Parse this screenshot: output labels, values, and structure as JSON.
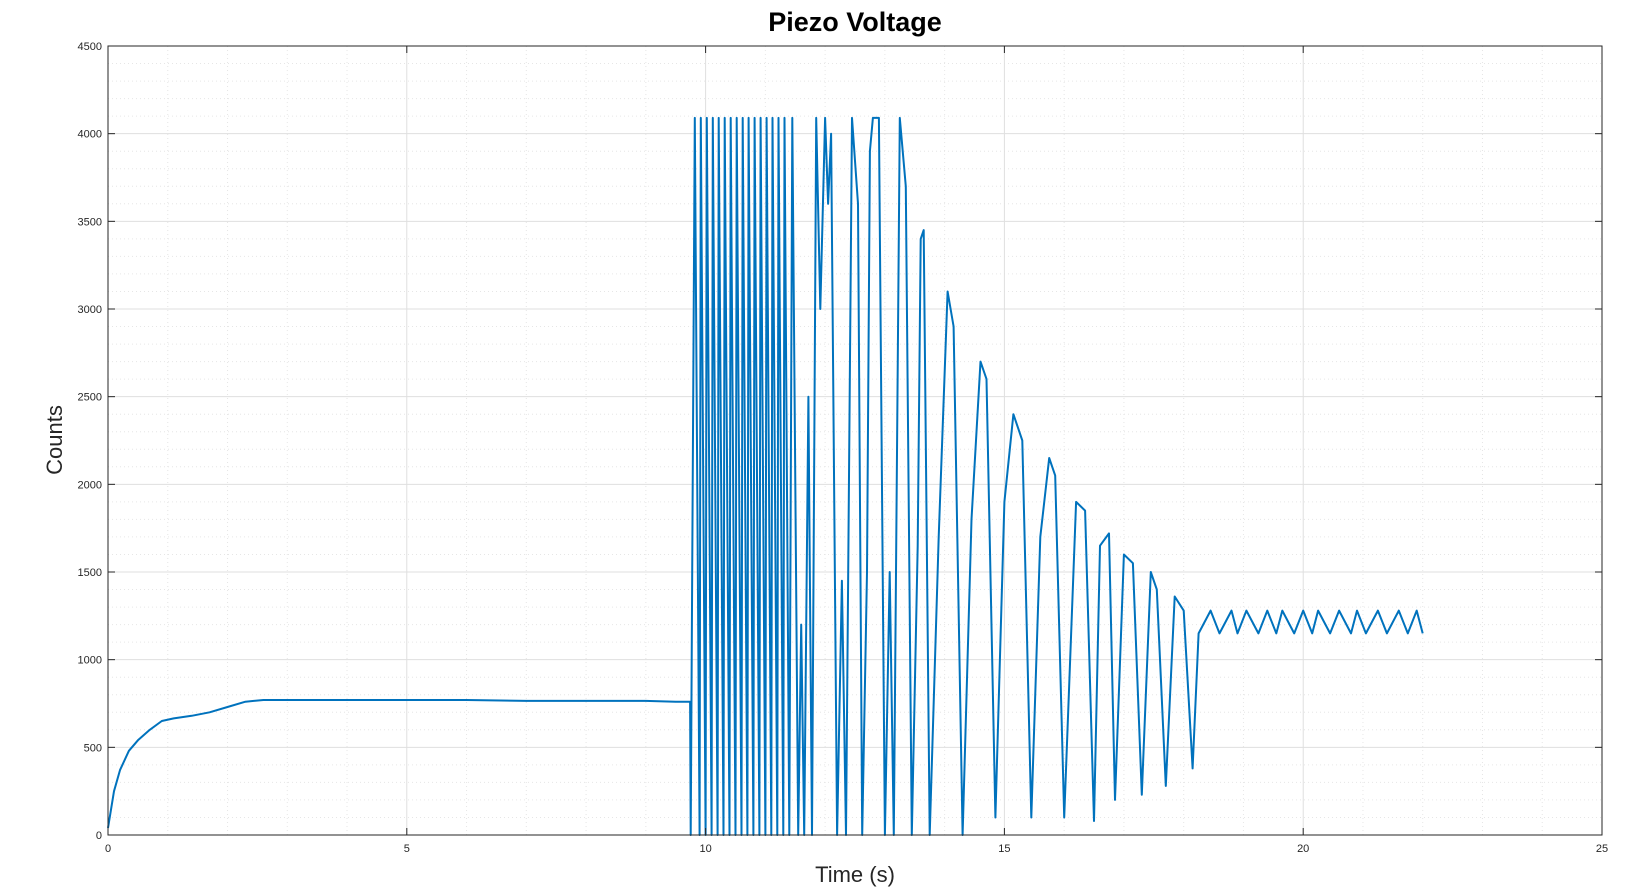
{
  "chart_data": {
    "type": "line",
    "title": "Piezo Voltage",
    "xlabel": "Time (s)",
    "ylabel": "Counts",
    "xlim": [
      0,
      25
    ],
    "ylim": [
      0,
      4500
    ],
    "x_ticks": [
      0,
      5,
      10,
      15,
      20,
      25
    ],
    "y_ticks": [
      0,
      500,
      1000,
      1500,
      2000,
      2500,
      3000,
      3500,
      4000,
      4500
    ],
    "grid": true,
    "minor_grid": true,
    "series": [
      {
        "color": "#0072bd",
        "x": [
          0,
          0.1,
          0.2,
          0.35,
          0.5,
          0.7,
          0.9,
          1.1,
          1.4,
          1.7,
          2.0,
          2.3,
          2.6,
          3.0,
          4.0,
          5.0,
          6.0,
          7.0,
          8.0,
          9.0,
          9.5,
          9.74,
          9.75,
          9.82,
          9.9,
          9.92,
          10.0,
          10.02,
          10.1,
          10.12,
          10.2,
          10.22,
          10.3,
          10.32,
          10.4,
          10.42,
          10.5,
          10.52,
          10.6,
          10.62,
          10.7,
          10.72,
          10.8,
          10.82,
          10.9,
          10.92,
          11.0,
          11.02,
          11.1,
          11.12,
          11.2,
          11.22,
          11.3,
          11.32,
          11.4,
          11.45,
          11.55,
          11.6,
          11.65,
          11.72,
          11.78,
          11.85,
          11.92,
          12.0,
          12.05,
          12.1,
          12.2,
          12.28,
          12.35,
          12.45,
          12.55,
          12.62,
          12.7,
          12.75,
          12.8,
          12.9,
          13.0,
          13.08,
          13.15,
          13.25,
          13.35,
          13.45,
          13.55,
          13.6,
          13.65,
          13.75,
          13.9,
          14.05,
          14.15,
          14.3,
          14.45,
          14.6,
          14.7,
          14.85,
          15.0,
          15.15,
          15.3,
          15.45,
          15.6,
          15.75,
          15.85,
          16.0,
          16.2,
          16.35,
          16.5,
          16.6,
          16.75,
          16.85,
          17.0,
          17.15,
          17.3,
          17.45,
          17.55,
          17.7,
          17.85,
          18.0,
          18.15,
          18.25,
          18.45,
          18.6,
          18.8,
          18.9,
          19.05,
          19.25,
          19.4,
          19.55,
          19.65,
          19.85,
          20.0,
          20.15,
          20.25,
          20.45,
          20.6,
          20.8,
          20.9,
          21.05,
          21.25,
          21.4,
          21.6,
          21.75,
          21.9,
          22.0
        ],
        "y": [
          40,
          250,
          370,
          480,
          540,
          600,
          650,
          665,
          680,
          700,
          730,
          760,
          770,
          770,
          770,
          770,
          770,
          765,
          765,
          765,
          760,
          760,
          0,
          4090,
          0,
          4090,
          0,
          4090,
          0,
          4090,
          0,
          4090,
          0,
          4090,
          0,
          4090,
          0,
          4090,
          0,
          4090,
          0,
          4090,
          0,
          4090,
          0,
          4090,
          0,
          4090,
          0,
          4090,
          0,
          4090,
          0,
          4090,
          0,
          4090,
          0,
          1200,
          0,
          2500,
          0,
          4090,
          3000,
          4090,
          3600,
          4000,
          0,
          1450,
          0,
          4090,
          3600,
          0,
          1500,
          3900,
          4090,
          4090,
          0,
          1500,
          0,
          4090,
          3700,
          0,
          1650,
          3400,
          3450,
          0,
          1700,
          3100,
          2900,
          0,
          1800,
          2700,
          2600,
          100,
          1900,
          2400,
          2250,
          100,
          1700,
          2150,
          2050,
          100,
          1900,
          1850,
          80,
          1650,
          1720,
          200,
          1600,
          1550,
          230,
          1500,
          1400,
          280,
          1360,
          1280,
          380,
          1150,
          1280,
          1150,
          1280,
          1150,
          1280,
          1150,
          1280,
          1150,
          1280,
          1150,
          1280,
          1150,
          1280,
          1150,
          1280,
          1150,
          1280,
          1150,
          1280,
          1150,
          1280,
          1150,
          1280,
          1150
        ]
      }
    ]
  }
}
